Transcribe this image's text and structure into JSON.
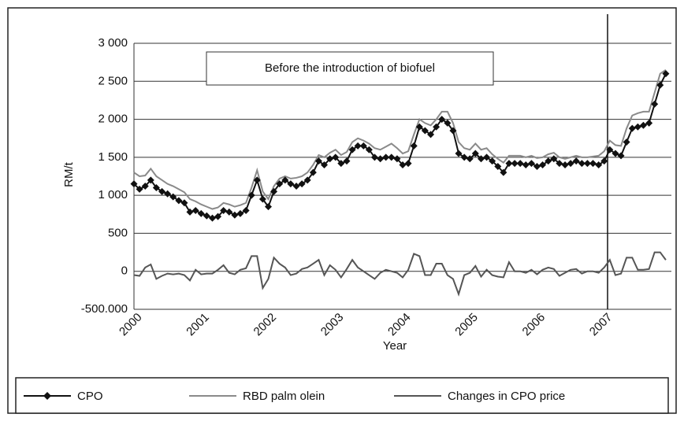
{
  "chart_data": {
    "type": "line",
    "y_label": "RM/t",
    "x_label": "Year",
    "annotation": "Before the introduction of biofuel",
    "vertical_line_x": 2007.05,
    "x": [
      2000,
      2000.083,
      2000.167,
      2000.25,
      2000.333,
      2000.417,
      2000.5,
      2000.583,
      2000.667,
      2000.75,
      2000.833,
      2000.917,
      2001,
      2001.083,
      2001.167,
      2001.25,
      2001.333,
      2001.417,
      2001.5,
      2001.583,
      2001.667,
      2001.75,
      2001.833,
      2001.917,
      2002,
      2002.083,
      2002.167,
      2002.25,
      2002.333,
      2002.417,
      2002.5,
      2002.583,
      2002.667,
      2002.75,
      2002.833,
      2002.917,
      2003,
      2003.083,
      2003.167,
      2003.25,
      2003.333,
      2003.417,
      2003.5,
      2003.583,
      2003.667,
      2003.75,
      2003.833,
      2003.917,
      2004,
      2004.083,
      2004.167,
      2004.25,
      2004.333,
      2004.417,
      2004.5,
      2004.583,
      2004.667,
      2004.75,
      2004.833,
      2004.917,
      2005,
      2005.083,
      2005.167,
      2005.25,
      2005.333,
      2005.417,
      2005.5,
      2005.583,
      2005.667,
      2005.75,
      2005.833,
      2005.917,
      2006,
      2006.083,
      2006.167,
      2006.25,
      2006.333,
      2006.417,
      2006.5,
      2006.583,
      2006.667,
      2006.75,
      2006.833,
      2006.917,
      2007,
      2007.083,
      2007.167,
      2007.25,
      2007.333,
      2007.417,
      2007.5,
      2007.583,
      2007.667,
      2007.75,
      2007.833,
      2007.917
    ],
    "series": [
      {
        "name": "CPO",
        "color": "#111111",
        "marker": "diamond",
        "values": [
          1150,
          1080,
          1120,
          1200,
          1100,
          1050,
          1020,
          980,
          930,
          900,
          780,
          800,
          760,
          730,
          700,
          720,
          800,
          780,
          740,
          760,
          800,
          1000,
          1200,
          950,
          850,
          1050,
          1150,
          1200,
          1150,
          1120,
          1150,
          1200,
          1300,
          1450,
          1400,
          1480,
          1500,
          1420,
          1450,
          1600,
          1650,
          1650,
          1600,
          1500,
          1480,
          1500,
          1500,
          1480,
          1400,
          1420,
          1650,
          1900,
          1850,
          1800,
          1900,
          2000,
          1950,
          1850,
          1550,
          1500,
          1480,
          1550,
          1480,
          1500,
          1450,
          1380,
          1300,
          1420,
          1420,
          1420,
          1400,
          1420,
          1380,
          1400,
          1450,
          1480,
          1420,
          1400,
          1420,
          1450,
          1420,
          1420,
          1420,
          1400,
          1450,
          1600,
          1550,
          1520,
          1700,
          1880,
          1900,
          1920,
          1950,
          2200,
          2450,
          2600
        ]
      },
      {
        "name": "RBD palm olein",
        "color": "#8a8a8a",
        "values": [
          1300,
          1250,
          1260,
          1350,
          1250,
          1200,
          1150,
          1120,
          1080,
          1040,
          950,
          920,
          880,
          850,
          820,
          840,
          900,
          880,
          850,
          870,
          900,
          1100,
          1330,
          1050,
          950,
          1120,
          1220,
          1250,
          1220,
          1230,
          1250,
          1300,
          1400,
          1530,
          1500,
          1560,
          1600,
          1530,
          1570,
          1700,
          1750,
          1720,
          1680,
          1620,
          1600,
          1640,
          1680,
          1620,
          1550,
          1580,
          1800,
          2000,
          1950,
          1920,
          2000,
          2100,
          2100,
          1950,
          1700,
          1620,
          1600,
          1680,
          1600,
          1620,
          1540,
          1480,
          1430,
          1520,
          1520,
          1520,
          1500,
          1520,
          1490,
          1500,
          1540,
          1560,
          1500,
          1480,
          1500,
          1520,
          1500,
          1500,
          1510,
          1520,
          1580,
          1720,
          1660,
          1650,
          1880,
          2050,
          2080,
          2100,
          2100,
          2350,
          2600,
          2650
        ]
      },
      {
        "name": "Changes in CPO price",
        "color": "#555555",
        "values": [
          -50,
          -60,
          50,
          90,
          -100,
          -60,
          -30,
          -40,
          -30,
          -50,
          -120,
          20,
          -40,
          -30,
          -30,
          20,
          80,
          -20,
          -40,
          20,
          40,
          200,
          200,
          -220,
          -100,
          180,
          100,
          50,
          -50,
          -30,
          30,
          50,
          100,
          150,
          -50,
          80,
          20,
          -80,
          30,
          150,
          50,
          0,
          -50,
          -100,
          -20,
          20,
          0,
          -20,
          -80,
          20,
          230,
          200,
          -50,
          -50,
          100,
          100,
          -50,
          -100,
          -300,
          -50,
          -20,
          70,
          -70,
          20,
          -50,
          -70,
          -80,
          120,
          0,
          0,
          -20,
          20,
          -40,
          20,
          50,
          30,
          -60,
          -20,
          20,
          30,
          -30,
          0,
          0,
          -20,
          50,
          150,
          -50,
          -30,
          180,
          180,
          20,
          20,
          30,
          250,
          250,
          150
        ]
      }
    ],
    "xlim": [
      2000,
      2008
    ],
    "xticks": [
      2000,
      2001,
      2002,
      2003,
      2004,
      2005,
      2006,
      2007
    ],
    "ylim": [
      -500,
      3000
    ],
    "yticks": [
      {
        "value": -500,
        "label": "-500.000"
      },
      0,
      500,
      {
        "value": 1000,
        "label": "1 000"
      },
      {
        "value": 1500,
        "label": "1 500"
      },
      {
        "value": 2000,
        "label": "2 000"
      },
      {
        "value": 2500,
        "label": "2 500"
      },
      {
        "value": 3000,
        "label": "3 000"
      }
    ],
    "grid": true,
    "legend": "bottom"
  }
}
